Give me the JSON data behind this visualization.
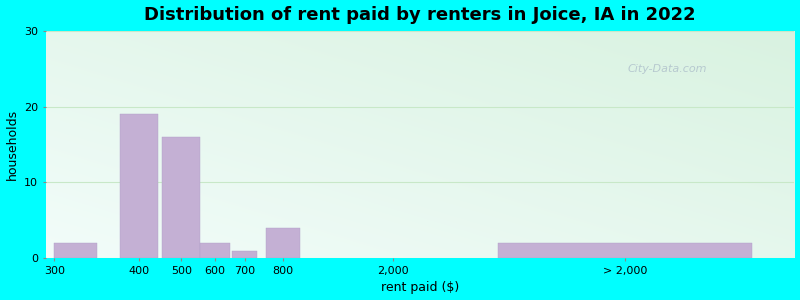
{
  "title": "Distribution of rent paid by renters in Joice, IA in 2022",
  "xlabel": "rent paid ($)",
  "ylabel": "households",
  "bar_color": "#c4b0d4",
  "bar_edgecolor": "#b0a0c8",
  "outer_bg": "#00ffff",
  "ylim": [
    0,
    30
  ],
  "yticks": [
    0,
    10,
    20,
    30
  ],
  "values": [
    2,
    19,
    16,
    2,
    1,
    4,
    2
  ],
  "bar_centers": [
    0.5,
    2.0,
    3.0,
    3.8,
    4.5,
    5.4,
    13.5
  ],
  "bar_widths": [
    1.0,
    0.9,
    0.9,
    0.7,
    0.6,
    0.8,
    6.0
  ],
  "xtick_positions": [
    0.0,
    2.0,
    3.0,
    3.8,
    4.5,
    5.4,
    8.0,
    13.5
  ],
  "xtick_labels": [
    "300",
    "400",
    "500",
    "600",
    "700",
    "800",
    "2,000",
    "> 2,000"
  ],
  "xlim": [
    -0.2,
    17.5
  ],
  "watermark": "City-Data.com",
  "title_fontsize": 13,
  "axis_label_fontsize": 9,
  "tick_fontsize": 8,
  "grid_color": "#d0e8d0",
  "bg_left": "#e0f5e0",
  "bg_right": "#f5fff8"
}
